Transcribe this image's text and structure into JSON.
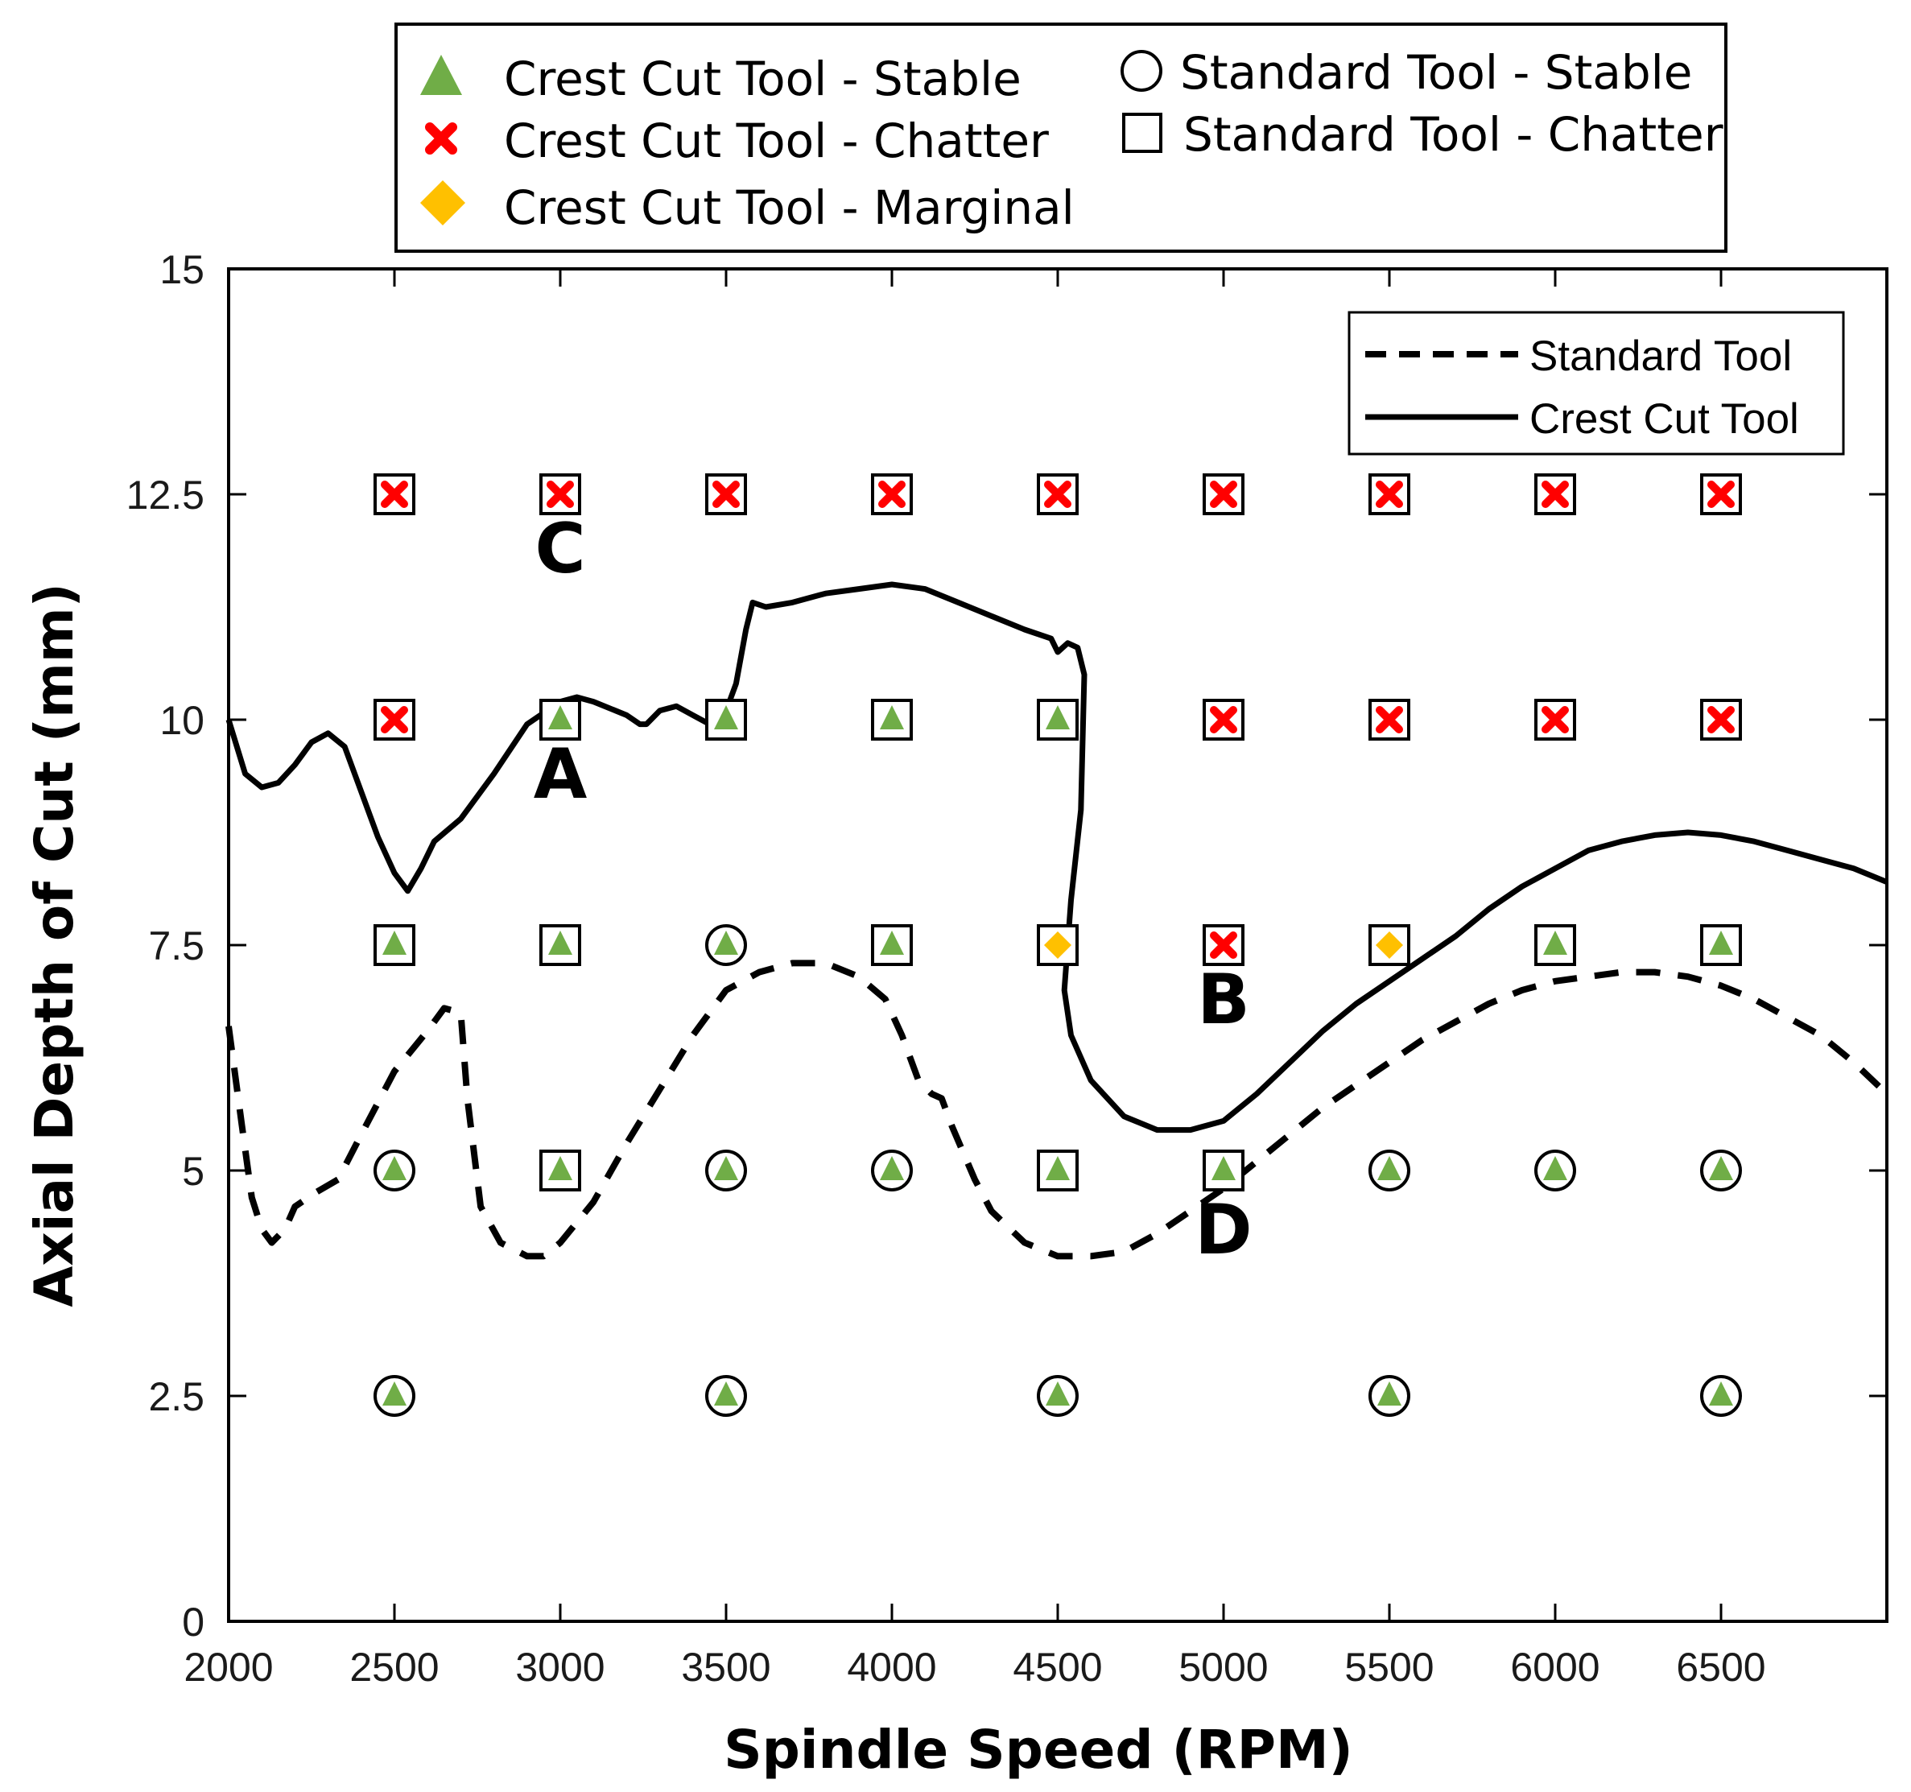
{
  "chart_data": {
    "type": "scatter",
    "xlabel": "Spindle Speed (RPM)",
    "ylabel": "Axial Depth of Cut (mm)",
    "xlim": [
      2000,
      7000
    ],
    "ylim": [
      0,
      15
    ],
    "xticks": [
      2000,
      2500,
      3000,
      3500,
      4000,
      4500,
      5000,
      5500,
      6000,
      6500
    ],
    "yticks": [
      0,
      2.5,
      5,
      7.5,
      10,
      12.5,
      15
    ],
    "ytick_labels": [
      "0",
      "2.5",
      "5",
      "7.5",
      "10",
      "12.5",
      "15"
    ],
    "marker_legend": [
      "Crest Cut Tool - Stable",
      "Crest Cut Tool - Chatter",
      "Crest Cut Tool - Marginal",
      "Standard Tool - Stable",
      "Standard Tool - Chatter"
    ],
    "line_legend": [
      "Standard Tool",
      "Crest Cut Tool"
    ],
    "colors": {
      "stable": "#70AD47",
      "chatter": "#FF0000",
      "marginal": "#FFC000",
      "line": "#000000"
    },
    "crest_cut_points": [
      {
        "x": 2500,
        "y": 12.5,
        "status": "chatter"
      },
      {
        "x": 3000,
        "y": 12.5,
        "status": "chatter"
      },
      {
        "x": 3500,
        "y": 12.5,
        "status": "chatter"
      },
      {
        "x": 4000,
        "y": 12.5,
        "status": "chatter"
      },
      {
        "x": 4500,
        "y": 12.5,
        "status": "chatter"
      },
      {
        "x": 5000,
        "y": 12.5,
        "status": "chatter"
      },
      {
        "x": 5500,
        "y": 12.5,
        "status": "chatter"
      },
      {
        "x": 6000,
        "y": 12.5,
        "status": "chatter"
      },
      {
        "x": 6500,
        "y": 12.5,
        "status": "chatter"
      },
      {
        "x": 2500,
        "y": 10,
        "status": "chatter"
      },
      {
        "x": 3000,
        "y": 10,
        "status": "stable"
      },
      {
        "x": 3500,
        "y": 10,
        "status": "stable"
      },
      {
        "x": 4000,
        "y": 10,
        "status": "stable"
      },
      {
        "x": 4500,
        "y": 10,
        "status": "stable"
      },
      {
        "x": 5000,
        "y": 10,
        "status": "chatter"
      },
      {
        "x": 5500,
        "y": 10,
        "status": "chatter"
      },
      {
        "x": 6000,
        "y": 10,
        "status": "chatter"
      },
      {
        "x": 6500,
        "y": 10,
        "status": "chatter"
      },
      {
        "x": 2500,
        "y": 7.5,
        "status": "stable"
      },
      {
        "x": 3000,
        "y": 7.5,
        "status": "stable"
      },
      {
        "x": 3500,
        "y": 7.5,
        "status": "stable"
      },
      {
        "x": 4000,
        "y": 7.5,
        "status": "stable"
      },
      {
        "x": 4500,
        "y": 7.5,
        "status": "marginal"
      },
      {
        "x": 5000,
        "y": 7.5,
        "status": "chatter"
      },
      {
        "x": 5500,
        "y": 7.5,
        "status": "marginal"
      },
      {
        "x": 6000,
        "y": 7.5,
        "status": "stable"
      },
      {
        "x": 6500,
        "y": 7.5,
        "status": "stable"
      },
      {
        "x": 2500,
        "y": 5,
        "status": "stable"
      },
      {
        "x": 3000,
        "y": 5,
        "status": "stable"
      },
      {
        "x": 3500,
        "y": 5,
        "status": "stable"
      },
      {
        "x": 4000,
        "y": 5,
        "status": "stable"
      },
      {
        "x": 4500,
        "y": 5,
        "status": "stable"
      },
      {
        "x": 5000,
        "y": 5,
        "status": "stable"
      },
      {
        "x": 5500,
        "y": 5,
        "status": "stable"
      },
      {
        "x": 6000,
        "y": 5,
        "status": "stable"
      },
      {
        "x": 6500,
        "y": 5,
        "status": "stable"
      },
      {
        "x": 2500,
        "y": 2.5,
        "status": "stable"
      },
      {
        "x": 3500,
        "y": 2.5,
        "status": "stable"
      },
      {
        "x": 4500,
        "y": 2.5,
        "status": "stable"
      },
      {
        "x": 5500,
        "y": 2.5,
        "status": "stable"
      },
      {
        "x": 6500,
        "y": 2.5,
        "status": "stable"
      }
    ],
    "standard_points": [
      {
        "x": 2500,
        "y": 12.5,
        "status": "chatter"
      },
      {
        "x": 3000,
        "y": 12.5,
        "status": "chatter"
      },
      {
        "x": 3500,
        "y": 12.5,
        "status": "chatter"
      },
      {
        "x": 4000,
        "y": 12.5,
        "status": "chatter"
      },
      {
        "x": 4500,
        "y": 12.5,
        "status": "chatter"
      },
      {
        "x": 5000,
        "y": 12.5,
        "status": "chatter"
      },
      {
        "x": 5500,
        "y": 12.5,
        "status": "chatter"
      },
      {
        "x": 6000,
        "y": 12.5,
        "status": "chatter"
      },
      {
        "x": 6500,
        "y": 12.5,
        "status": "chatter"
      },
      {
        "x": 2500,
        "y": 10,
        "status": "chatter"
      },
      {
        "x": 3000,
        "y": 10,
        "status": "chatter"
      },
      {
        "x": 3500,
        "y": 10,
        "status": "chatter"
      },
      {
        "x": 4000,
        "y": 10,
        "status": "chatter"
      },
      {
        "x": 4500,
        "y": 10,
        "status": "chatter"
      },
      {
        "x": 5000,
        "y": 10,
        "status": "chatter"
      },
      {
        "x": 5500,
        "y": 10,
        "status": "chatter"
      },
      {
        "x": 6000,
        "y": 10,
        "status": "chatter"
      },
      {
        "x": 6500,
        "y": 10,
        "status": "chatter"
      },
      {
        "x": 2500,
        "y": 7.5,
        "status": "chatter"
      },
      {
        "x": 3000,
        "y": 7.5,
        "status": "chatter"
      },
      {
        "x": 3500,
        "y": 7.5,
        "status": "stable"
      },
      {
        "x": 4000,
        "y": 7.5,
        "status": "chatter"
      },
      {
        "x": 4500,
        "y": 7.5,
        "status": "chatter"
      },
      {
        "x": 5000,
        "y": 7.5,
        "status": "chatter"
      },
      {
        "x": 5500,
        "y": 7.5,
        "status": "chatter"
      },
      {
        "x": 6000,
        "y": 7.5,
        "status": "chatter"
      },
      {
        "x": 6500,
        "y": 7.5,
        "status": "chatter"
      },
      {
        "x": 2500,
        "y": 5,
        "status": "stable"
      },
      {
        "x": 3000,
        "y": 5,
        "status": "chatter"
      },
      {
        "x": 3500,
        "y": 5,
        "status": "stable"
      },
      {
        "x": 4000,
        "y": 5,
        "status": "stable"
      },
      {
        "x": 4500,
        "y": 5,
        "status": "chatter"
      },
      {
        "x": 5000,
        "y": 5,
        "status": "chatter"
      },
      {
        "x": 5500,
        "y": 5,
        "status": "stable"
      },
      {
        "x": 6000,
        "y": 5,
        "status": "stable"
      },
      {
        "x": 6500,
        "y": 5,
        "status": "stable"
      },
      {
        "x": 2500,
        "y": 2.5,
        "status": "stable"
      },
      {
        "x": 3500,
        "y": 2.5,
        "status": "stable"
      },
      {
        "x": 4500,
        "y": 2.5,
        "status": "stable"
      },
      {
        "x": 5500,
        "y": 2.5,
        "status": "stable"
      },
      {
        "x": 6500,
        "y": 2.5,
        "status": "stable"
      }
    ],
    "crest_cut_curve": [
      [
        2000,
        10.0
      ],
      [
        2050,
        9.4
      ],
      [
        2100,
        9.25
      ],
      [
        2150,
        9.3
      ],
      [
        2200,
        9.5
      ],
      [
        2250,
        9.75
      ],
      [
        2300,
        9.85
      ],
      [
        2350,
        9.7
      ],
      [
        2400,
        9.2
      ],
      [
        2450,
        8.7
      ],
      [
        2500,
        8.3
      ],
      [
        2540,
        8.1
      ],
      [
        2580,
        8.35
      ],
      [
        2620,
        8.65
      ],
      [
        2700,
        8.9
      ],
      [
        2800,
        9.4
      ],
      [
        2900,
        9.95
      ],
      [
        3000,
        10.2
      ],
      [
        3050,
        10.25
      ],
      [
        3100,
        10.2
      ],
      [
        3200,
        10.05
      ],
      [
        3240,
        9.95
      ],
      [
        3260,
        9.95
      ],
      [
        3300,
        10.1
      ],
      [
        3350,
        10.15
      ],
      [
        3400,
        10.05
      ],
      [
        3450,
        9.95
      ],
      [
        3480,
        9.9
      ],
      [
        3530,
        10.4
      ],
      [
        3560,
        11.0
      ],
      [
        3580,
        11.3
      ],
      [
        3620,
        11.25
      ],
      [
        3700,
        11.3
      ],
      [
        3800,
        11.4
      ],
      [
        3900,
        11.45
      ],
      [
        4000,
        11.5
      ],
      [
        4100,
        11.45
      ],
      [
        4200,
        11.3
      ],
      [
        4300,
        11.15
      ],
      [
        4400,
        11.0
      ],
      [
        4480,
        10.9
      ],
      [
        4500,
        10.75
      ],
      [
        4530,
        10.85
      ],
      [
        4560,
        10.8
      ],
      [
        4580,
        10.5
      ],
      [
        4570,
        9.0
      ],
      [
        4540,
        8.0
      ],
      [
        4520,
        7.0
      ],
      [
        4540,
        6.5
      ],
      [
        4600,
        6.0
      ],
      [
        4700,
        5.6
      ],
      [
        4800,
        5.45
      ],
      [
        4900,
        5.45
      ],
      [
        5000,
        5.55
      ],
      [
        5100,
        5.85
      ],
      [
        5200,
        6.2
      ],
      [
        5300,
        6.55
      ],
      [
        5400,
        6.85
      ],
      [
        5500,
        7.1
      ],
      [
        5600,
        7.35
      ],
      [
        5700,
        7.6
      ],
      [
        5800,
        7.9
      ],
      [
        5900,
        8.15
      ],
      [
        6000,
        8.35
      ],
      [
        6100,
        8.55
      ],
      [
        6200,
        8.65
      ],
      [
        6300,
        8.72
      ],
      [
        6400,
        8.75
      ],
      [
        6500,
        8.72
      ],
      [
        6600,
        8.65
      ],
      [
        6700,
        8.55
      ],
      [
        6800,
        8.45
      ],
      [
        6900,
        8.35
      ],
      [
        7000,
        8.2
      ]
    ],
    "standard_curve": [
      [
        2000,
        6.6
      ],
      [
        2040,
        5.5
      ],
      [
        2070,
        4.7
      ],
      [
        2100,
        4.35
      ],
      [
        2130,
        4.2
      ],
      [
        2170,
        4.35
      ],
      [
        2200,
        4.6
      ],
      [
        2260,
        4.75
      ],
      [
        2330,
        4.9
      ],
      [
        2400,
        5.4
      ],
      [
        2500,
        6.1
      ],
      [
        2600,
        6.55
      ],
      [
        2650,
        6.8
      ],
      [
        2700,
        6.75
      ],
      [
        2720,
        5.8
      ],
      [
        2760,
        4.6
      ],
      [
        2820,
        4.2
      ],
      [
        2900,
        4.05
      ],
      [
        2950,
        4.05
      ],
      [
        3000,
        4.2
      ],
      [
        3100,
        4.65
      ],
      [
        3200,
        5.3
      ],
      [
        3300,
        5.9
      ],
      [
        3400,
        6.5
      ],
      [
        3500,
        7.0
      ],
      [
        3600,
        7.2
      ],
      [
        3700,
        7.3
      ],
      [
        3800,
        7.3
      ],
      [
        3900,
        7.15
      ],
      [
        3980,
        6.9
      ],
      [
        4030,
        6.5
      ],
      [
        4080,
        6.0
      ],
      [
        4120,
        5.85
      ],
      [
        4150,
        5.8
      ],
      [
        4180,
        5.5
      ],
      [
        4250,
        4.9
      ],
      [
        4300,
        4.55
      ],
      [
        4400,
        4.2
      ],
      [
        4500,
        4.05
      ],
      [
        4600,
        4.05
      ],
      [
        4700,
        4.1
      ],
      [
        4800,
        4.3
      ],
      [
        4900,
        4.55
      ],
      [
        5000,
        4.8
      ],
      [
        5100,
        5.1
      ],
      [
        5200,
        5.4
      ],
      [
        5300,
        5.7
      ],
      [
        5400,
        5.95
      ],
      [
        5500,
        6.2
      ],
      [
        5600,
        6.45
      ],
      [
        5700,
        6.65
      ],
      [
        5800,
        6.85
      ],
      [
        5900,
        7.0
      ],
      [
        6000,
        7.1
      ],
      [
        6100,
        7.15
      ],
      [
        6200,
        7.2
      ],
      [
        6300,
        7.2
      ],
      [
        6400,
        7.15
      ],
      [
        6500,
        7.05
      ],
      [
        6600,
        6.9
      ],
      [
        6700,
        6.7
      ],
      [
        6800,
        6.5
      ],
      [
        6900,
        6.2
      ],
      [
        7000,
        5.85
      ]
    ],
    "annotations": [
      {
        "label": "A",
        "x": 3000,
        "y": 9.4
      },
      {
        "label": "B",
        "x": 5000,
        "y": 6.9
      },
      {
        "label": "C",
        "x": 3000,
        "y": 11.9
      },
      {
        "label": "D",
        "x": 5000,
        "y": 4.35
      }
    ]
  }
}
